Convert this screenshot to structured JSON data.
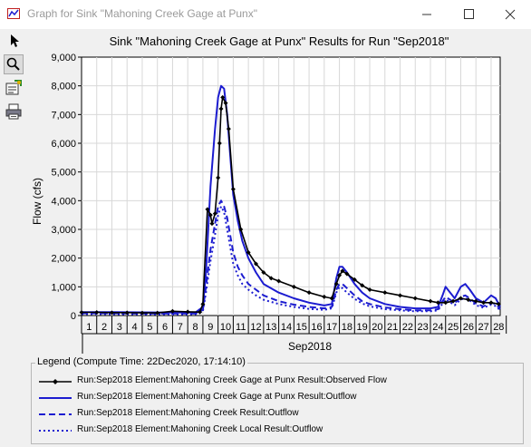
{
  "window": {
    "title": "Graph for Sink \"Mahoning Creek Gage at Punx\""
  },
  "toolbar": {
    "tools": [
      "pointer-icon",
      "zoom-icon",
      "properties-icon",
      "print-icon"
    ]
  },
  "chart_data": {
    "type": "line",
    "title": "Sink \"Mahoning Creek Gage at Punx\" Results for Run \"Sep2018\"",
    "ylabel": "Flow (cfs)",
    "xlabel": "Sep2018",
    "ylim": [
      0,
      9000
    ],
    "xlim": [
      1,
      28.6
    ],
    "yticks": [
      "0",
      "1,000",
      "2,000",
      "3,000",
      "4,000",
      "5,000",
      "6,000",
      "7,000",
      "8,000",
      "9,000"
    ],
    "xticks": [
      "1",
      "2",
      "3",
      "4",
      "5",
      "6",
      "7",
      "8",
      "9",
      "10",
      "11",
      "12",
      "13",
      "14",
      "15",
      "16",
      "17",
      "18",
      "19",
      "20",
      "21",
      "22",
      "23",
      "24",
      "25",
      "26",
      "27",
      "28"
    ],
    "series": [
      {
        "name": "Run:Sep2018 Element:Mahoning Creek Gage at Punx Result:Observed Flow",
        "color": "#000000",
        "style": "solid-markers",
        "x": [
          1,
          2,
          3,
          4,
          5,
          6,
          7,
          8,
          8.8,
          9,
          9.3,
          9.5,
          9.6,
          9.8,
          10,
          10.1,
          10.2,
          10.3,
          10.5,
          10.7,
          11,
          11.5,
          12,
          12.5,
          13,
          13.5,
          14,
          15,
          16,
          17,
          17.5,
          17.8,
          18,
          18.2,
          18.5,
          19,
          19.5,
          20,
          21,
          22,
          23,
          24,
          24.5,
          25,
          25.5,
          26,
          26.5,
          27,
          27.5,
          28,
          28.5
        ],
        "y": [
          110,
          110,
          100,
          100,
          90,
          90,
          150,
          130,
          120,
          400,
          3700,
          3500,
          3200,
          3550,
          4800,
          6000,
          7200,
          7600,
          7400,
          6500,
          4400,
          3000,
          2200,
          1800,
          1500,
          1300,
          1200,
          1000,
          800,
          650,
          600,
          1100,
          1400,
          1550,
          1450,
          1250,
          1050,
          900,
          800,
          700,
          600,
          500,
          450,
          450,
          500,
          600,
          550,
          500,
          450,
          450,
          400
        ]
      },
      {
        "name": "Run:Sep2018 Element:Mahoning Creek Gage at Punx Result:Outflow",
        "color": "#1c1cd0",
        "style": "solid",
        "x": [
          1,
          3,
          5,
          7,
          8.5,
          9,
          9.2,
          9.5,
          9.8,
          10,
          10.2,
          10.4,
          10.6,
          10.8,
          11,
          11.3,
          11.6,
          12,
          12.5,
          13,
          14,
          15,
          16,
          17,
          17.5,
          17.8,
          18,
          18.2,
          18.5,
          19,
          19.5,
          20,
          21,
          22,
          23,
          24,
          24.5,
          24.8,
          25,
          25.3,
          25.6,
          26,
          26.3,
          26.6,
          27,
          27.5,
          28,
          28.3,
          28.6
        ],
        "y": [
          120,
          120,
          110,
          100,
          100,
          300,
          1500,
          4500,
          6500,
          7600,
          8000,
          7900,
          7000,
          5600,
          4200,
          3300,
          2600,
          2000,
          1500,
          1100,
          800,
          600,
          450,
          350,
          400,
          1300,
          1700,
          1700,
          1500,
          1100,
          800,
          600,
          400,
          300,
          250,
          250,
          300,
          700,
          1000,
          800,
          600,
          1000,
          1100,
          900,
          600,
          450,
          700,
          600,
          300
        ]
      },
      {
        "name": "Run:Sep2018 Element:Mahoning Creek Result:Outflow",
        "color": "#1c1cd0",
        "style": "dashed",
        "x": [
          1,
          3,
          5,
          7,
          8.5,
          9,
          9.2,
          9.5,
          9.8,
          10,
          10.2,
          10.4,
          10.6,
          10.8,
          11,
          11.3,
          11.6,
          12,
          12.5,
          13,
          14,
          15,
          16,
          17,
          17.5,
          17.8,
          18,
          18.2,
          18.5,
          19,
          19.5,
          20,
          21,
          22,
          23,
          24,
          24.5,
          24.8,
          25,
          25.3,
          25.6,
          26,
          26.3,
          26.6,
          27,
          27.5,
          28,
          28.3,
          28.6
        ],
        "y": [
          80,
          80,
          70,
          70,
          70,
          200,
          1000,
          2300,
          3200,
          3800,
          4000,
          3800,
          3400,
          2800,
          2200,
          1700,
          1400,
          1100,
          900,
          700,
          500,
          380,
          300,
          250,
          300,
          900,
          1100,
          1100,
          950,
          700,
          500,
          400,
          280,
          220,
          180,
          180,
          220,
          500,
          650,
          550,
          430,
          650,
          700,
          600,
          420,
          320,
          450,
          400,
          220
        ]
      },
      {
        "name": "Run:Sep2018 Element:Mahoning Creek Local Result:Outflow",
        "color": "#1c1cd0",
        "style": "dotted",
        "x": [
          1,
          3,
          5,
          7,
          8.5,
          9,
          9.2,
          9.5,
          9.8,
          10,
          10.2,
          10.4,
          10.6,
          10.8,
          11,
          11.3,
          11.6,
          12,
          12.5,
          13,
          14,
          15,
          16,
          17,
          17.5,
          17.8,
          18,
          18.2,
          18.5,
          19,
          19.5,
          20,
          21,
          22,
          23,
          24,
          24.5,
          24.8,
          25,
          25.3,
          25.6,
          26,
          26.3,
          26.6,
          27,
          27.5,
          28,
          28.3,
          28.6
        ],
        "y": [
          50,
          50,
          45,
          45,
          45,
          150,
          800,
          1900,
          2800,
          3500,
          3800,
          3600,
          3000,
          2400,
          1800,
          1400,
          1100,
          900,
          700,
          550,
          400,
          300,
          230,
          200,
          250,
          800,
          1000,
          950,
          800,
          580,
          420,
          320,
          220,
          180,
          150,
          150,
          180,
          420,
          560,
          460,
          360,
          560,
          600,
          520,
          360,
          270,
          380,
          330,
          180
        ]
      }
    ]
  },
  "legend": {
    "title": "Legend (Compute Time: 22Dec2020, 17:14:10)",
    "items": [
      "Run:Sep2018 Element:Mahoning Creek Gage at Punx Result:Observed Flow",
      "Run:Sep2018 Element:Mahoning Creek Gage at Punx Result:Outflow",
      "Run:Sep2018 Element:Mahoning Creek Result:Outflow",
      "Run:Sep2018 Element:Mahoning Creek Local Result:Outflow"
    ]
  }
}
